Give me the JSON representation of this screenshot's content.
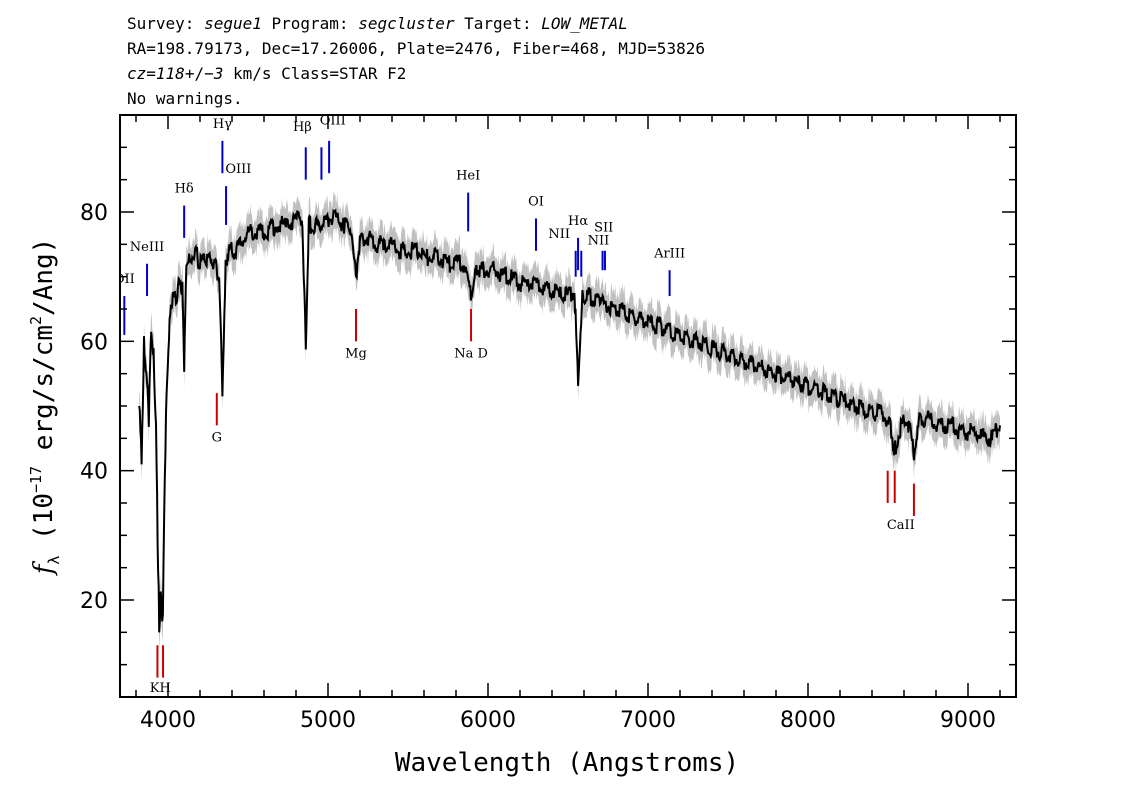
{
  "header": {
    "line1": {
      "survey_label": "Survey: ",
      "survey": "segue1",
      "program_label": " Program: ",
      "program": "segcluster",
      "target_label": " Target: ",
      "target": "LOW_METAL"
    },
    "line2": "RA=198.79173, Dec=17.26006, Plate=2476, Fiber=468, MJD=53826",
    "line3": {
      "cz_label": "cz",
      "eq": "=",
      "cz_value": "118",
      "pm": "+/−",
      "cz_err": "3",
      "units": " km/s Class=STAR F2"
    },
    "line4": "No warnings."
  },
  "chart_data": {
    "type": "line",
    "xlabel": "Wavelength (Angstroms)",
    "ylabel": "f_λ (10^-17 erg/s/cm^2/Ang)",
    "ylabel_parts": {
      "f": "f",
      "lambda": "λ",
      "pre": " (10",
      "exp1": "−17",
      "mid": " erg/s/cm",
      "exp2": "2",
      "post": "/Ang)"
    },
    "xlim": [
      3700,
      9300
    ],
    "ylim": [
      5,
      95
    ],
    "xticks": [
      4000,
      5000,
      6000,
      7000,
      8000,
      9000
    ],
    "xtick_labels": [
      "4000",
      "5000",
      "6000",
      "7000",
      "8000",
      "9000"
    ],
    "yticks": [
      20,
      40,
      60,
      80
    ],
    "ytick_labels": [
      "20",
      "40",
      "60",
      "80"
    ],
    "colors": {
      "flux": "#000000",
      "error_band": "#c0c0c0",
      "emission": "#0000cc",
      "absorption": "#cc0000"
    },
    "series": [
      {
        "name": "flux",
        "x": [
          3820,
          3835,
          3850,
          3865,
          3880,
          3895,
          3910,
          3925,
          3935,
          3945,
          3955,
          3968,
          3980,
          3995,
          4010,
          4030,
          4050,
          4070,
          4090,
          4101,
          4115,
          4140,
          4170,
          4200,
          4230,
          4260,
          4290,
          4320,
          4340,
          4360,
          4380,
          4420,
          4470,
          4520,
          4570,
          4620,
          4680,
          4740,
          4800,
          4840,
          4861,
          4880,
          4920,
          4960,
          5000,
          5050,
          5100,
          5150,
          5175,
          5200,
          5250,
          5300,
          5350,
          5400,
          5450,
          5500,
          5550,
          5600,
          5650,
          5700,
          5750,
          5800,
          5850,
          5893,
          5920,
          5950,
          6000,
          6050,
          6100,
          6150,
          6200,
          6250,
          6300,
          6350,
          6400,
          6450,
          6500,
          6540,
          6563,
          6590,
          6620,
          6700,
          6800,
          6900,
          7000,
          7100,
          7200,
          7300,
          7400,
          7500,
          7600,
          7700,
          7800,
          7900,
          8000,
          8100,
          8200,
          8300,
          8400,
          8450,
          8498,
          8520,
          8542,
          8580,
          8620,
          8662,
          8700,
          8750,
          8800,
          8850,
          8900,
          8950,
          9000,
          9050,
          9100,
          9150,
          9200
        ],
        "y": [
          50,
          42,
          60,
          55,
          48,
          62,
          58,
          46,
          30,
          16,
          20,
          17,
          40,
          55,
          63,
          67,
          66,
          70,
          68,
          55,
          72,
          73,
          74,
          72,
          73,
          73,
          72,
          70,
          52,
          72,
          74,
          74,
          76,
          77,
          77,
          77,
          78,
          78,
          79,
          79,
          59,
          78,
          78,
          78,
          79,
          79,
          78,
          77,
          70,
          76,
          76,
          75,
          75,
          75,
          74,
          74,
          74,
          73,
          73,
          73,
          72,
          72,
          72,
          67,
          71,
          71,
          71,
          71,
          70,
          70,
          69,
          69,
          69,
          68,
          68,
          67,
          67,
          68,
          54,
          67,
          67,
          66,
          65,
          64,
          63,
          62,
          61,
          60,
          59,
          58,
          57,
          56,
          55,
          54,
          53,
          52,
          51,
          50,
          49,
          49,
          48,
          46,
          43,
          47,
          48,
          43,
          48,
          48,
          47,
          47,
          47,
          46,
          46,
          46,
          45,
          45,
          47
        ]
      }
    ],
    "error_band_width": 1.8,
    "emission_lines": [
      {
        "label": "OII",
        "x": 3727,
        "y1": 61,
        "y2": 67
      },
      {
        "label": "NeIII",
        "x": 3869,
        "y1": 67,
        "y2": 72
      },
      {
        "label": "Hδ",
        "x": 4101,
        "y1": 76,
        "y2": 81
      },
      {
        "label": "Hγ",
        "x": 4340,
        "y1": 86,
        "y2": 91
      },
      {
        "label": "OIII",
        "x": 4363,
        "y1": 78,
        "y2": 84
      },
      {
        "label": "Hβ",
        "x": 4861,
        "y1": 85,
        "y2": 90
      },
      {
        "label": "OIII",
        "x": 4959,
        "y1": 85,
        "y2": 90
      },
      {
        "label": "OIII",
        "x": 5007,
        "y1": 86,
        "y2": 91
      },
      {
        "label": "HeI",
        "x": 5876,
        "y1": 77,
        "y2": 83
      },
      {
        "label": "OI",
        "x": 6300,
        "y1": 74,
        "y2": 79
      },
      {
        "label": "NII",
        "x": 6548,
        "y1": 70,
        "y2": 74
      },
      {
        "label": "Hα",
        "x": 6563,
        "y1": 71,
        "y2": 76
      },
      {
        "label": "NII",
        "x": 6583,
        "y1": 70,
        "y2": 74
      },
      {
        "label": "SII",
        "x": 6716,
        "y1": 71,
        "y2": 74
      },
      {
        "label": "SII",
        "x": 6731,
        "y1": 71,
        "y2": 74
      },
      {
        "label": "ArIII",
        "x": 7135,
        "y1": 67,
        "y2": 71
      }
    ],
    "absorption_lines": [
      {
        "label": "K",
        "x": 3934,
        "y1": 8,
        "y2": 13
      },
      {
        "label": "H",
        "x": 3969,
        "y1": 8,
        "y2": 13
      },
      {
        "label": "G",
        "x": 4305,
        "y1": 47,
        "y2": 52
      },
      {
        "label": "Mg",
        "x": 5175,
        "y1": 60,
        "y2": 65
      },
      {
        "label": "Na",
        "x": 5894,
        "y1": 60,
        "y2": 65
      },
      {
        "label": "CaII",
        "x": 8498,
        "y1": 35,
        "y2": 40
      },
      {
        "label": "CaII",
        "x": 8542,
        "y1": 35,
        "y2": 40
      },
      {
        "label": "CaII",
        "x": 8662,
        "y1": 33,
        "y2": 38
      }
    ],
    "annotation_labels": [
      {
        "text": "OII",
        "x": 3727,
        "y": 69,
        "color": "emission",
        "clip": true
      },
      {
        "text": "NeIII",
        "x": 3869,
        "y": 74,
        "color": "emission"
      },
      {
        "text": "Hδ",
        "x": 4101,
        "y": 83,
        "color": "emission"
      },
      {
        "text": "Hγ",
        "x": 4340,
        "y": 93,
        "color": "emission"
      },
      {
        "text": "OIII",
        "x": 4440,
        "y": 86,
        "color": "emission"
      },
      {
        "text": "Hβ",
        "x": 4840,
        "y": 92.5,
        "color": "emission"
      },
      {
        "text": "OIII",
        "x": 5030,
        "y": 93.5,
        "color": "emission"
      },
      {
        "text": "HeI",
        "x": 5876,
        "y": 85,
        "color": "emission"
      },
      {
        "text": "OI",
        "x": 6300,
        "y": 81,
        "color": "emission"
      },
      {
        "text": "NII",
        "x": 6445,
        "y": 76,
        "color": "emission"
      },
      {
        "text": "Hα",
        "x": 6563,
        "y": 78,
        "color": "emission"
      },
      {
        "text": "SII",
        "x": 6723,
        "y": 77,
        "color": "emission"
      },
      {
        "text": "NII",
        "x": 6690,
        "y": 75,
        "color": "emission"
      },
      {
        "text": "ArIII",
        "x": 7135,
        "y": 73,
        "color": "emission"
      },
      {
        "text": "KH",
        "x": 3952,
        "y": 5.8,
        "color": "absorption"
      },
      {
        "text": "G",
        "x": 4305,
        "y": 44.5,
        "color": "absorption"
      },
      {
        "text": "Mg",
        "x": 5175,
        "y": 57.5,
        "color": "absorption"
      },
      {
        "text": "Na  D",
        "x": 5894,
        "y": 57.5,
        "color": "absorption"
      },
      {
        "text": "CaII",
        "x": 8580,
        "y": 31,
        "color": "absorption"
      }
    ]
  }
}
